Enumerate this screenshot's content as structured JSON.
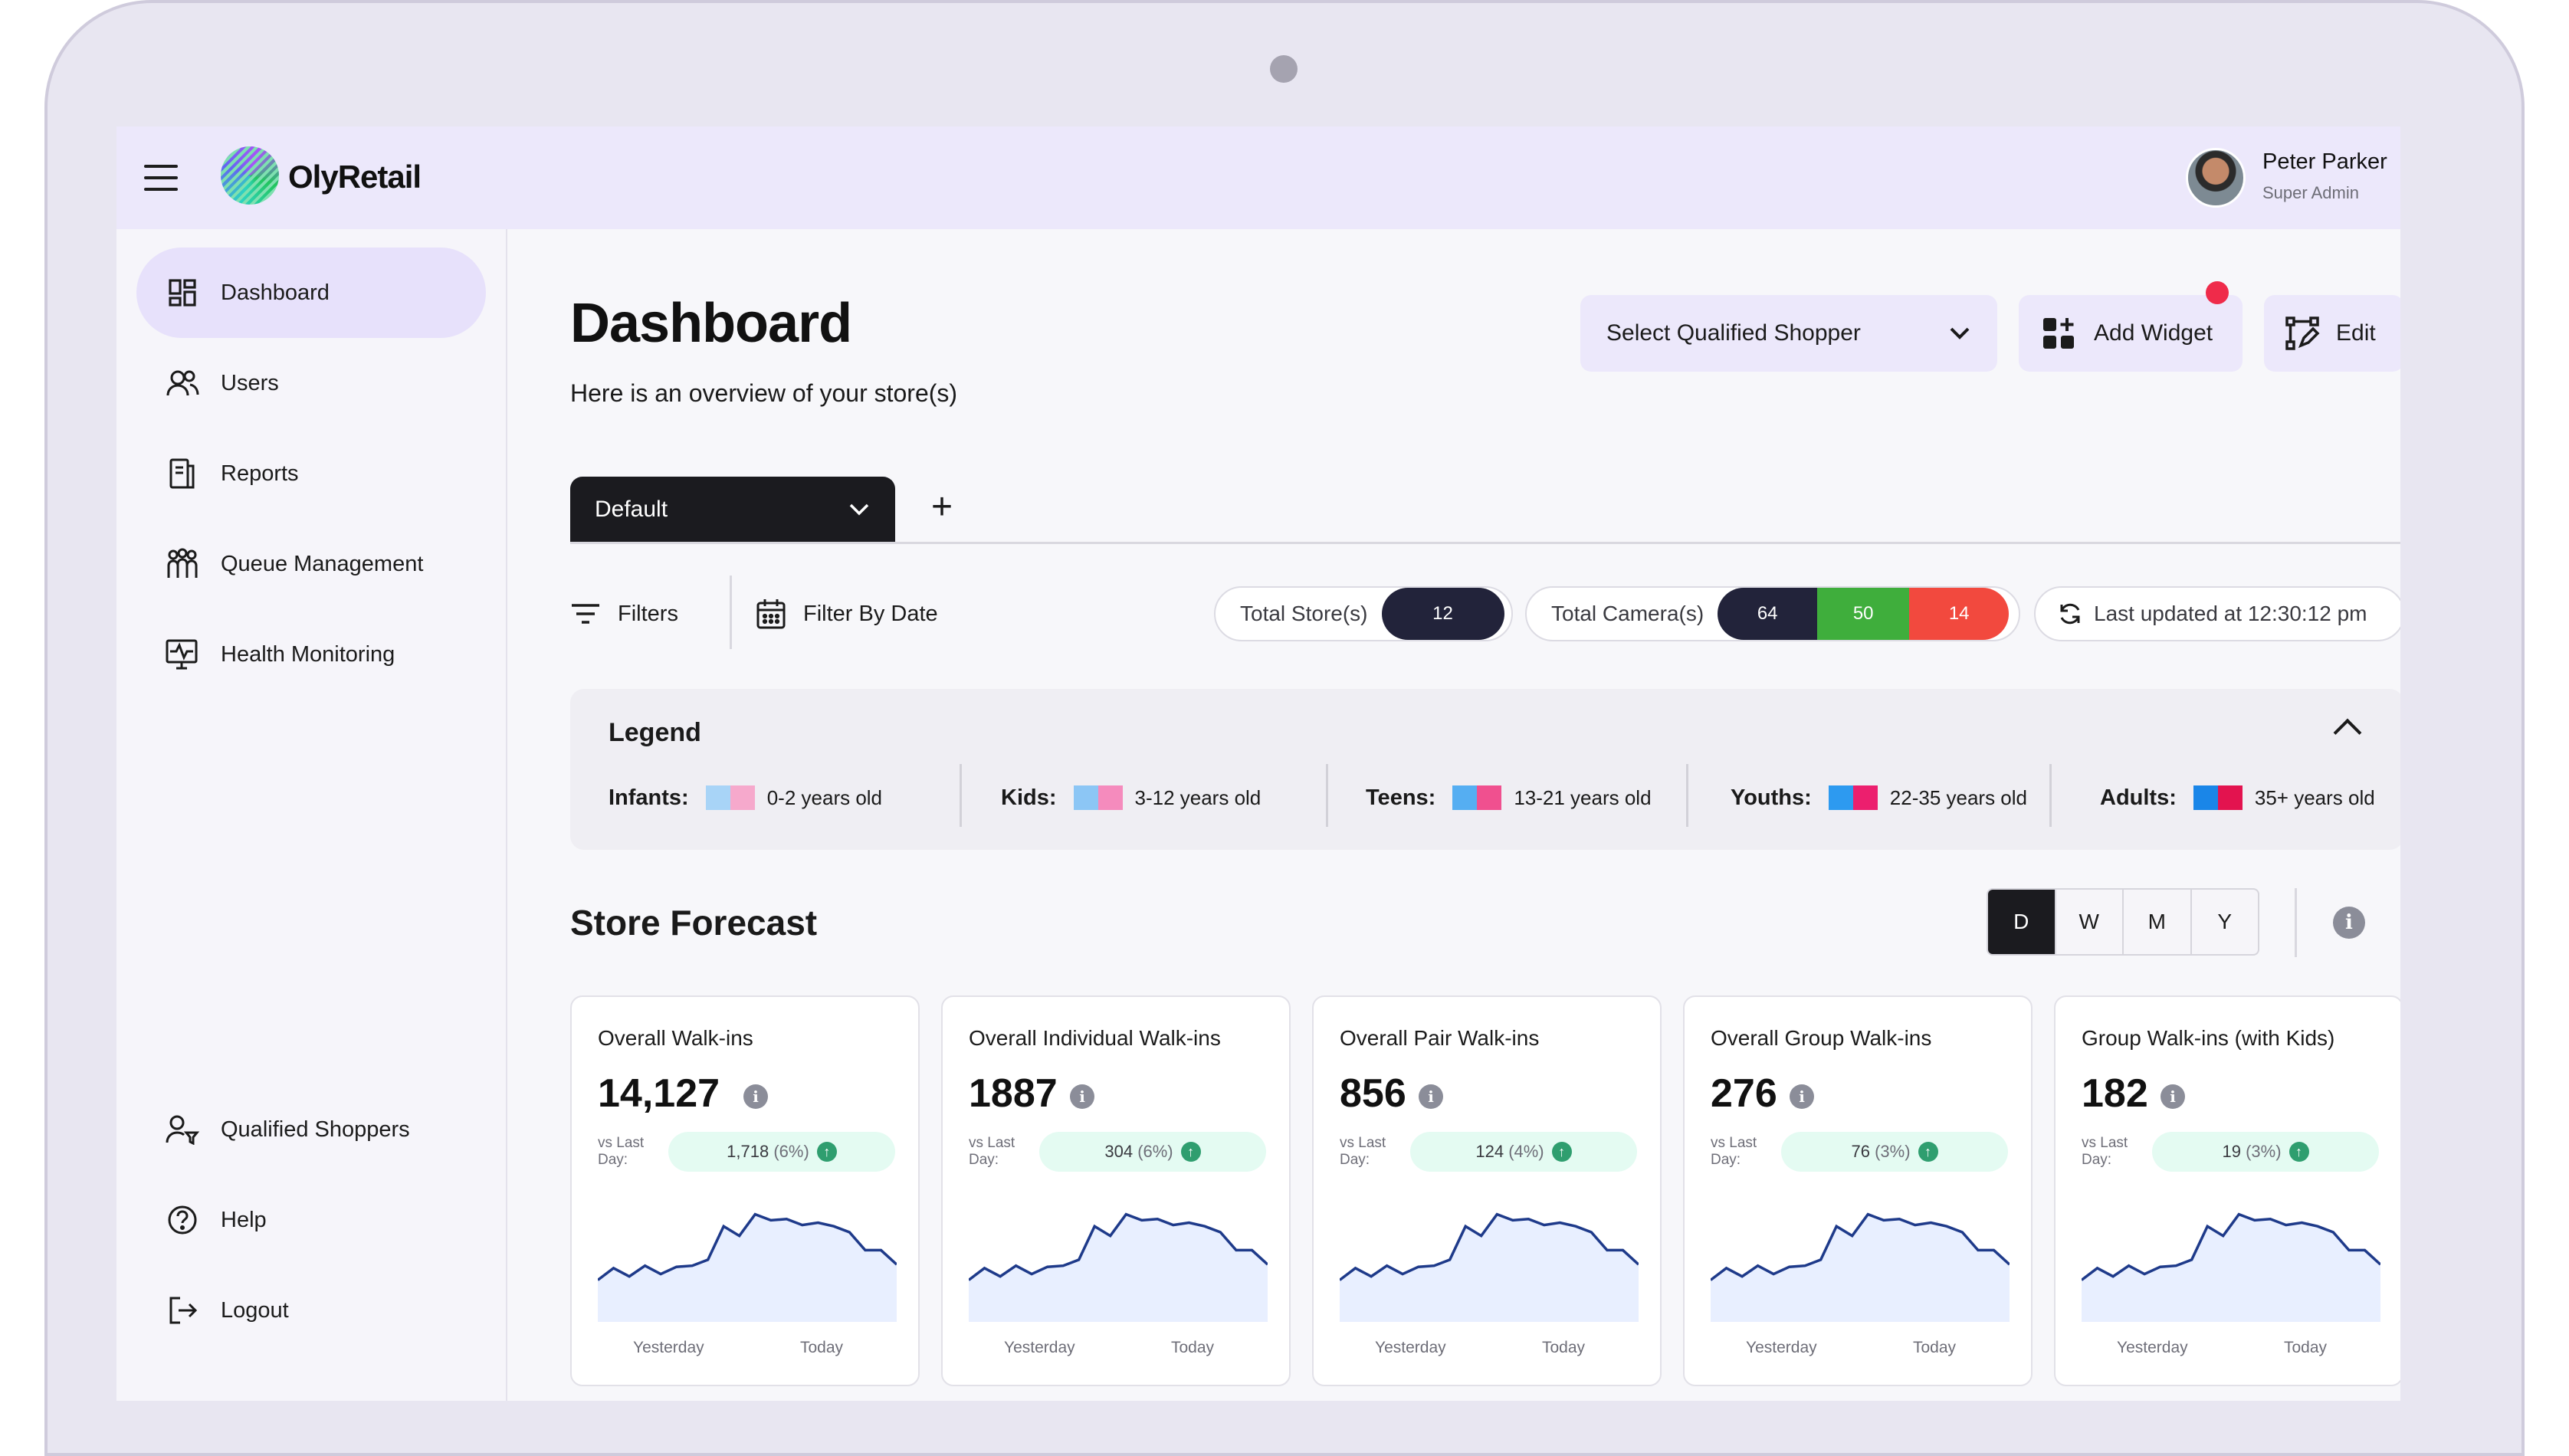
{
  "app": {
    "name": "OlyRetail"
  },
  "user": {
    "name": "Peter Parker",
    "role": "Super Admin"
  },
  "sidebar": {
    "items": [
      {
        "label": "Dashboard",
        "icon": "dashboard-icon",
        "active": true
      },
      {
        "label": "Users",
        "icon": "users-icon"
      },
      {
        "label": "Reports",
        "icon": "reports-icon"
      },
      {
        "label": "Queue Management",
        "icon": "queue-icon"
      },
      {
        "label": "Health Monitoring",
        "icon": "monitor-icon"
      }
    ],
    "bottom_items": [
      {
        "label": "Qualified Shoppers",
        "icon": "qualified-shoppers-icon"
      },
      {
        "label": "Help",
        "icon": "help-icon"
      },
      {
        "label": "Logout",
        "icon": "logout-icon"
      }
    ]
  },
  "header": {
    "title": "Dashboard",
    "subtitle": "Here is an overview of your store(s)",
    "shopper_select": "Select Qualified Shopper",
    "add_widget": "Add Widget",
    "edit": "Edit"
  },
  "tabs": {
    "current": "Default",
    "add": "+"
  },
  "toolbar": {
    "filters": "Filters",
    "filter_by_date": "Filter By Date",
    "total_stores_label": "Total Store(s)",
    "total_stores_value": "12",
    "total_cameras_label": "Total Camera(s)",
    "camera_counts": [
      "64",
      "50",
      "14"
    ],
    "camera_colors": [
      "#22233a",
      "#3fae3c",
      "#f2493e"
    ],
    "last_updated": "Last updated at 12:30:12 pm"
  },
  "legend": {
    "title": "Legend",
    "groups": [
      {
        "label": "Infants:",
        "range": "0-2 years old",
        "colors": [
          "#a8d4f7",
          "#f6a9cc"
        ]
      },
      {
        "label": "Kids:",
        "range": "3-12 years old",
        "colors": [
          "#8cc6f5",
          "#f58bbd"
        ]
      },
      {
        "label": "Teens:",
        "range": "13-21 years old",
        "colors": [
          "#55aef2",
          "#f0508f"
        ]
      },
      {
        "label": "Youths:",
        "range": "22-35 years old",
        "colors": [
          "#2d9af0",
          "#ec1f6e"
        ]
      },
      {
        "label": "Adults:",
        "range": "35+ years old",
        "colors": [
          "#1a86e8",
          "#e3134f"
        ]
      }
    ]
  },
  "forecast": {
    "title": "Store Forecast",
    "periods": [
      "D",
      "W",
      "M",
      "Y"
    ],
    "active_period": "D",
    "info": "i",
    "vs_label": "vs Last Day:",
    "x_labels": [
      "Yesterday",
      "Today"
    ],
    "cards": [
      {
        "title": "Overall Walk-ins",
        "value": "14,127",
        "delta": "1,718",
        "pct": "(6%)"
      },
      {
        "title": "Overall Individual Walk-ins",
        "value": "1887",
        "delta": "304",
        "pct": "(6%)"
      },
      {
        "title": "Overall Pair Walk-ins",
        "value": "856",
        "delta": "124",
        "pct": "(4%)"
      },
      {
        "title": "Overall Group Walk-ins",
        "value": "276",
        "delta": "76",
        "pct": "(3%)"
      },
      {
        "title": "Group Walk-ins (with Kids)",
        "value": "182",
        "delta": "19",
        "pct": "(3%)"
      }
    ],
    "trend": [
      0.35,
      0.45,
      0.38,
      0.47,
      0.4,
      0.46,
      0.47,
      0.52,
      0.8,
      0.72,
      0.9,
      0.85,
      0.86,
      0.81,
      0.83,
      0.8,
      0.75,
      0.6,
      0.6,
      0.48
    ],
    "line_color": "#1e3a8a",
    "fill_color": "#e8efff"
  }
}
